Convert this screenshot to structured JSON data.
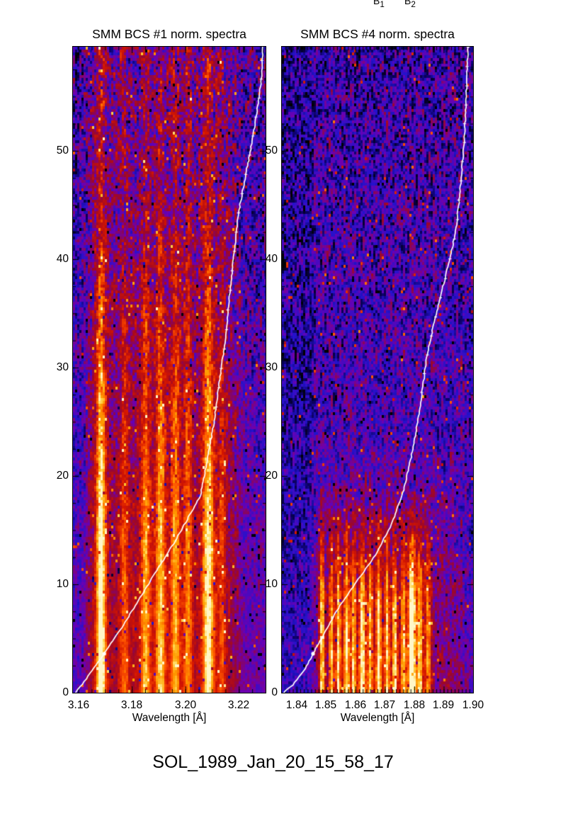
{
  "page": {
    "background": "#ffffff",
    "caption": "SOL_1989_Jan_20_15_58_17",
    "top_cropped_labels": [
      {
        "base": "B",
        "sub": "1"
      },
      {
        "base": "B",
        "sub": "2"
      }
    ]
  },
  "palette": {
    "stops": [
      [
        0.0,
        "#000000"
      ],
      [
        0.1,
        "#0a0060"
      ],
      [
        0.2,
        "#2412cc"
      ],
      [
        0.32,
        "#6c00b2"
      ],
      [
        0.45,
        "#9c0728"
      ],
      [
        0.58,
        "#d31500"
      ],
      [
        0.72,
        "#fe5400"
      ],
      [
        0.84,
        "#ff9d00"
      ],
      [
        0.93,
        "#ffd34a"
      ],
      [
        1.0,
        "#fff7c8"
      ]
    ]
  },
  "chart_data": [
    {
      "type": "heatmap",
      "title": "SMM BCS #1 norm. spectra",
      "xlabel": "Wavelength [Å]",
      "ylabel": "",
      "xlim": [
        3.158,
        3.23
      ],
      "ylim": [
        0,
        59.6
      ],
      "xtick_values": [
        3.16,
        3.18,
        3.2,
        3.22
      ],
      "xtick_labels": [
        "3.16",
        "3.18",
        "3.20",
        "3.22"
      ],
      "x_minor_step": 0.005,
      "ytick_values": [
        0,
        10,
        20,
        30,
        40,
        50
      ],
      "ytick_labels": [
        "0",
        "10",
        "20",
        "30",
        "40",
        "50"
      ],
      "y_minor_step": 2.5,
      "grid": false,
      "emission_lines": [
        {
          "wavelength": 3.1685,
          "amplitude": 0.66,
          "sigma": 0.0013
        },
        {
          "wavelength": 3.1772,
          "amplitude": 0.26,
          "sigma": 0.0011
        },
        {
          "wavelength": 3.1851,
          "amplitude": 0.4,
          "sigma": 0.0012
        },
        {
          "wavelength": 3.1907,
          "amplitude": 0.44,
          "sigma": 0.0013
        },
        {
          "wavelength": 3.1963,
          "amplitude": 0.4,
          "sigma": 0.0012
        },
        {
          "wavelength": 3.201,
          "amplitude": 0.32,
          "sigma": 0.0011
        },
        {
          "wavelength": 3.2086,
          "amplitude": 0.58,
          "sigma": 0.0015
        },
        {
          "wavelength": 3.2136,
          "amplitude": 0.24,
          "sigma": 0.0011
        }
      ],
      "line_fade": {
        "full_until": 14,
        "fade_end": 44,
        "min_factor": 0.3
      },
      "background": {
        "mid": 0.36,
        "top": 0.34,
        "left_edge": 0.2,
        "right_edge": 0.24,
        "left_cut": 3.1645,
        "right_cut": 3.2175,
        "haze_center": 3.191,
        "haze_sigma": 0.026,
        "haze_amp": 0.16,
        "haze_fade_end": 50
      },
      "texture": {
        "noise_bottom": 0.1,
        "noise_top": 0.32
      },
      "lightcurve": {
        "color": "#ffffff",
        "points": [
          [
            0,
            3.1591
          ],
          [
            1.8,
            3.1645
          ],
          [
            3.6,
            3.1697
          ],
          [
            6.5,
            3.1775
          ],
          [
            10.3,
            3.1869
          ],
          [
            14,
            3.1962
          ],
          [
            18.2,
            3.2057
          ],
          [
            24.1,
            3.2102
          ],
          [
            32.5,
            3.2149
          ],
          [
            40,
            3.218
          ],
          [
            44.3,
            3.2199
          ],
          [
            50.9,
            3.225
          ],
          [
            56.4,
            3.2284
          ],
          [
            59.6,
            3.2289
          ]
        ],
        "marker_t": [
          3.6
        ]
      }
    },
    {
      "type": "heatmap",
      "title": "SMM BCS #4 norm. spectra",
      "xlabel": "Wavelength [Å]",
      "ylabel": "",
      "xlim": [
        1.835,
        1.9
      ],
      "ylim": [
        0,
        59.6
      ],
      "xtick_values": [
        1.84,
        1.85,
        1.86,
        1.87,
        1.88,
        1.89,
        1.9
      ],
      "xtick_labels": [
        "1.84",
        "1.85",
        "1.86",
        "1.87",
        "1.88",
        "1.89",
        "1.90"
      ],
      "x_minor_step": 0.00125,
      "ytick_values": [
        0,
        10,
        20,
        30,
        40,
        50
      ],
      "ytick_labels": [
        "0",
        "10",
        "20",
        "30",
        "40",
        "50"
      ],
      "y_minor_step": 2.5,
      "grid": false,
      "emission_lines": [
        {
          "wavelength": 1.8487,
          "amplitude": 0.6,
          "sigma": 0.0006
        },
        {
          "wavelength": 1.8518,
          "amplitude": 0.5,
          "sigma": 0.0006
        },
        {
          "wavelength": 1.8542,
          "amplitude": 0.52,
          "sigma": 0.0006
        },
        {
          "wavelength": 1.857,
          "amplitude": 0.55,
          "sigma": 0.0007
        },
        {
          "wavelength": 1.8594,
          "amplitude": 0.48,
          "sigma": 0.0006
        },
        {
          "wavelength": 1.8623,
          "amplitude": 0.55,
          "sigma": 0.0007
        },
        {
          "wavelength": 1.865,
          "amplitude": 0.45,
          "sigma": 0.0006
        },
        {
          "wavelength": 1.8679,
          "amplitude": 0.52,
          "sigma": 0.0007
        },
        {
          "wavelength": 1.8708,
          "amplitude": 0.44,
          "sigma": 0.0006
        },
        {
          "wavelength": 1.8734,
          "amplitude": 0.5,
          "sigma": 0.0006
        },
        {
          "wavelength": 1.8763,
          "amplitude": 0.46,
          "sigma": 0.0006
        },
        {
          "wavelength": 1.8792,
          "amplitude": 0.78,
          "sigma": 0.0009
        },
        {
          "wavelength": 1.8819,
          "amplitude": 0.5,
          "sigma": 0.0007
        },
        {
          "wavelength": 1.8847,
          "amplitude": 0.42,
          "sigma": 0.0007
        }
      ],
      "line_fade": {
        "full_until": 8,
        "fade_end": 19,
        "min_factor": 0.0
      },
      "background": {
        "mid": 0.3,
        "top": 0.22,
        "left_edge": 0.16,
        "right_edge": 0.2,
        "left_cut": 1.847,
        "right_cut": 1.896,
        "haze_center": 1.869,
        "haze_sigma": 0.018,
        "haze_amp": 0.22,
        "haze_fade_end": 24
      },
      "texture": {
        "noise_bottom": 0.16,
        "noise_top": 0.3
      },
      "lightcurve": {
        "color": "#ffffff",
        "points": [
          [
            0,
            1.8355
          ],
          [
            0.7,
            1.8386
          ],
          [
            2,
            1.8425
          ],
          [
            3.6,
            1.8456
          ],
          [
            5.5,
            1.8495
          ],
          [
            7.5,
            1.8535
          ],
          [
            10,
            1.8597
          ],
          [
            12.7,
            1.8668
          ],
          [
            15.5,
            1.8722
          ],
          [
            18.2,
            1.8759
          ],
          [
            21.5,
            1.8788
          ],
          [
            24.7,
            1.881
          ],
          [
            28,
            1.8828
          ],
          [
            31.2,
            1.8843
          ],
          [
            35.2,
            1.8877
          ],
          [
            38.5,
            1.8907
          ],
          [
            42.4,
            1.894
          ],
          [
            46,
            1.8955
          ],
          [
            50.8,
            1.8969
          ],
          [
            55,
            1.8977
          ],
          [
            59.6,
            1.8983
          ]
        ],
        "marker_t": [
          3.6
        ]
      }
    }
  ]
}
